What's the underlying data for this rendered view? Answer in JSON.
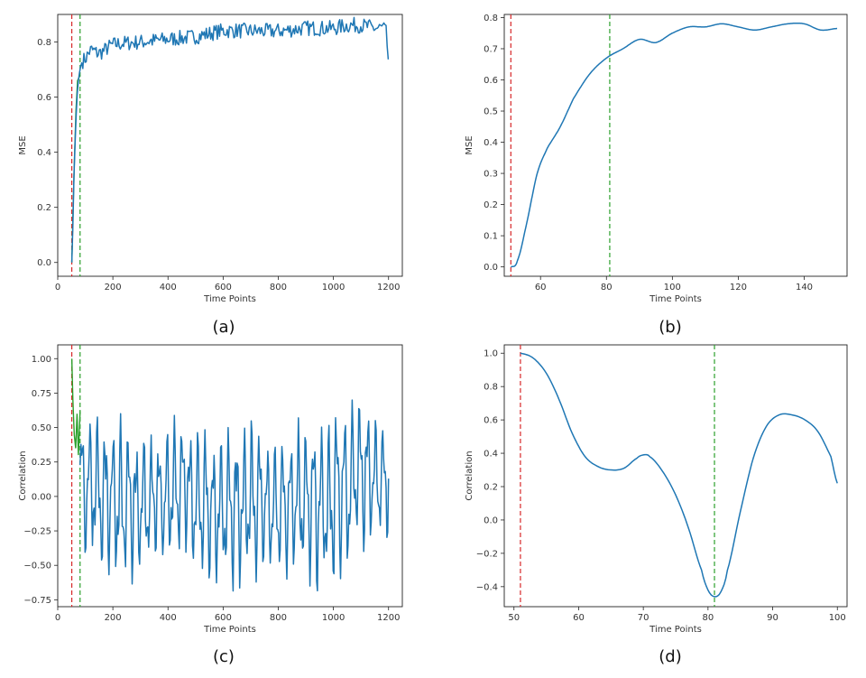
{
  "chart_data": [
    {
      "panel": "(a)",
      "type": "line",
      "xlabel": "Time Points",
      "ylabel": "MSE",
      "xlim": [
        0,
        1250
      ],
      "ylim": [
        -0.05,
        0.9
      ],
      "xticks": [
        0,
        200,
        400,
        600,
        800,
        1000,
        1200
      ],
      "yticks": [
        0.0,
        0.2,
        0.4,
        0.6,
        0.8
      ],
      "ytick_labels": [
        "0.0",
        "0.2",
        "0.4",
        "0.6",
        "0.8"
      ],
      "vlines": [
        {
          "x": 51,
          "color": "#d62728"
        },
        {
          "x": 81,
          "color": "#2ca02c"
        }
      ],
      "pre_series": {
        "x": [
          51,
          53,
          56,
          60,
          66,
          72,
          81
        ],
        "y": [
          0.0,
          0.08,
          0.2,
          0.35,
          0.55,
          0.66,
          0.68
        ],
        "color": "#2ca02c"
      },
      "series": {
        "x": [
          51,
          60,
          70,
          81,
          90,
          100,
          120,
          150,
          200,
          300,
          400,
          500,
          600,
          700,
          800,
          900,
          1000,
          1050,
          1100,
          1150,
          1190,
          1200
        ],
        "y": [
          0.0,
          0.35,
          0.6,
          0.7,
          0.73,
          0.74,
          0.77,
          0.76,
          0.79,
          0.8,
          0.81,
          0.82,
          0.84,
          0.84,
          0.84,
          0.85,
          0.85,
          0.86,
          0.86,
          0.85,
          0.84,
          0.73
        ],
        "noise": 0.014,
        "color": "#1f77b4"
      }
    },
    {
      "panel": "(b)",
      "type": "line",
      "xlabel": "Time Points",
      "ylabel": "MSE",
      "xlim": [
        49,
        153
      ],
      "ylim": [
        -0.03,
        0.81
      ],
      "xticks": [
        60,
        80,
        100,
        120,
        140
      ],
      "yticks": [
        0.0,
        0.1,
        0.2,
        0.3,
        0.4,
        0.5,
        0.6,
        0.7,
        0.8
      ],
      "ytick_labels": [
        "0.0",
        "0.1",
        "0.2",
        "0.3",
        "0.4",
        "0.5",
        "0.6",
        "0.7",
        "0.8"
      ],
      "vlines": [
        {
          "x": 51,
          "color": "#d62728"
        },
        {
          "x": 81,
          "color": "#2ca02c"
        }
      ],
      "series": {
        "x": [
          51,
          53,
          56,
          59,
          62,
          66,
          70,
          75,
          80,
          85,
          90,
          95,
          100,
          105,
          110,
          115,
          120,
          125,
          130,
          135,
          140,
          145,
          150
        ],
        "y": [
          0.0,
          0.02,
          0.15,
          0.3,
          0.38,
          0.45,
          0.54,
          0.62,
          0.67,
          0.7,
          0.73,
          0.72,
          0.75,
          0.77,
          0.77,
          0.78,
          0.77,
          0.76,
          0.77,
          0.78,
          0.78,
          0.76,
          0.765
        ],
        "color": "#1f77b4"
      }
    },
    {
      "panel": "(c)",
      "type": "line",
      "xlabel": "Time Points",
      "ylabel": "Correlation",
      "xlim": [
        0,
        1250
      ],
      "ylim": [
        -0.8,
        1.1
      ],
      "xticks": [
        0,
        200,
        400,
        600,
        800,
        1000,
        1200
      ],
      "yticks": [
        -0.75,
        -0.5,
        -0.25,
        0.0,
        0.25,
        0.5,
        0.75,
        1.0
      ],
      "ytick_labels": [
        "−0.75",
        "−0.50",
        "−0.25",
        "0.00",
        "0.25",
        "0.50",
        "0.75",
        "1.00"
      ],
      "vlines": [
        {
          "x": 51,
          "color": "#d62728"
        },
        {
          "x": 81,
          "color": "#2ca02c"
        }
      ],
      "pre_series": {
        "x": [
          51,
          55,
          60,
          65,
          70,
          75,
          81
        ],
        "y": [
          1.0,
          0.7,
          0.45,
          0.35,
          0.6,
          0.3,
          0.62
        ],
        "color": "#2ca02c"
      },
      "series": {
        "x_start": 81,
        "x_end": 1200,
        "amplitude": 0.45,
        "offset": 0.0,
        "period": 28,
        "color": "#1f77b4",
        "peaks": [
          0.62,
          0.6,
          0.6,
          0.45,
          0.47,
          0.6,
          0.55,
          0.44,
          0.5,
          0.6,
          0.4,
          0.5,
          0.57,
          0.55,
          0.7,
          0.74,
          0.55
        ],
        "troughs": [
          -0.5,
          -0.6,
          -0.68,
          -0.56,
          -0.5,
          -0.45,
          -0.6,
          -0.65,
          -0.7,
          -0.68,
          -0.55,
          -0.6,
          -0.65,
          -0.72,
          -0.6,
          -0.4,
          -0.3
        ]
      }
    },
    {
      "panel": "(d)",
      "type": "line",
      "xlabel": "Time Points",
      "ylabel": "Correlation",
      "xlim": [
        48.5,
        101.5
      ],
      "ylim": [
        -0.52,
        1.05
      ],
      "xticks": [
        50,
        60,
        70,
        80,
        90,
        100
      ],
      "yticks": [
        -0.4,
        -0.2,
        0.0,
        0.2,
        0.4,
        0.6,
        0.8,
        1.0
      ],
      "ytick_labels": [
        "−0.4",
        "−0.2",
        "0.0",
        "0.2",
        "0.4",
        "0.6",
        "0.8",
        "1.0"
      ],
      "vlines": [
        {
          "x": 51,
          "color": "#d62728"
        },
        {
          "x": 81,
          "color": "#2ca02c"
        }
      ],
      "series": {
        "x": [
          51,
          53,
          55,
          57,
          59,
          61,
          63,
          65,
          67,
          69,
          70,
          71,
          73,
          75,
          77,
          79,
          80,
          81,
          82,
          83,
          85,
          87,
          89,
          91,
          93,
          95,
          97,
          99,
          100
        ],
        "y": [
          1.0,
          0.97,
          0.88,
          0.72,
          0.52,
          0.38,
          0.32,
          0.3,
          0.31,
          0.37,
          0.39,
          0.38,
          0.29,
          0.15,
          -0.05,
          -0.3,
          -0.42,
          -0.46,
          -0.43,
          -0.3,
          0.05,
          0.37,
          0.56,
          0.63,
          0.63,
          0.6,
          0.53,
          0.38,
          0.22
        ],
        "color": "#1f77b4"
      }
    }
  ],
  "captions": [
    "(a)",
    "(b)",
    "(c)",
    "(d)"
  ],
  "colors": {
    "line": "#1f77b4",
    "red": "#d62728",
    "green": "#2ca02c"
  }
}
